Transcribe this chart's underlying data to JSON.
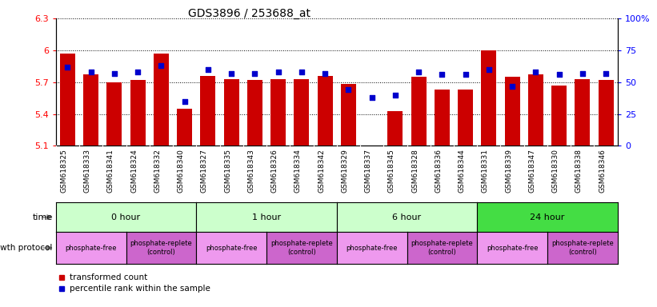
{
  "title": "GDS3896 / 253688_at",
  "samples": [
    "GSM618325",
    "GSM618333",
    "GSM618341",
    "GSM618324",
    "GSM618332",
    "GSM618340",
    "GSM618327",
    "GSM618335",
    "GSM618343",
    "GSM618326",
    "GSM618334",
    "GSM618342",
    "GSM618329",
    "GSM618337",
    "GSM618345",
    "GSM618328",
    "GSM618336",
    "GSM618344",
    "GSM618331",
    "GSM618339",
    "GSM618347",
    "GSM618330",
    "GSM618338",
    "GSM618346"
  ],
  "transformed_count": [
    5.97,
    5.77,
    5.7,
    5.72,
    5.97,
    5.45,
    5.76,
    5.73,
    5.72,
    5.73,
    5.73,
    5.76,
    5.68,
    5.1,
    5.43,
    5.75,
    5.63,
    5.63,
    6.0,
    5.75,
    5.77,
    5.67,
    5.73,
    5.72
  ],
  "percentile_rank": [
    62,
    58,
    57,
    58,
    63,
    35,
    60,
    57,
    57,
    58,
    58,
    57,
    44,
    38,
    40,
    58,
    56,
    56,
    60,
    47,
    58,
    56,
    57,
    57
  ],
  "ylim_left": [
    5.1,
    6.3
  ],
  "ylim_right": [
    0,
    100
  ],
  "yticks_left": [
    5.1,
    5.4,
    5.7,
    6.0,
    6.3
  ],
  "yticks_right": [
    0,
    25,
    50,
    75,
    100
  ],
  "ytick_labels_left": [
    "5.1",
    "5.4",
    "5.7",
    "6",
    "6.3"
  ],
  "ytick_labels_right": [
    "0",
    "25",
    "50",
    "75",
    "100%"
  ],
  "bar_color": "#cc0000",
  "percentile_color": "#0000cc",
  "time_groups": [
    {
      "label": "0 hour",
      "start": 0,
      "end": 6,
      "color": "#ccffcc"
    },
    {
      "label": "1 hour",
      "start": 6,
      "end": 12,
      "color": "#ccffcc"
    },
    {
      "label": "6 hour",
      "start": 12,
      "end": 18,
      "color": "#ccffcc"
    },
    {
      "label": "24 hour",
      "start": 18,
      "end": 24,
      "color": "#44dd44"
    }
  ],
  "protocol_groups": [
    {
      "label": "phosphate-free",
      "start": 0,
      "end": 3,
      "color": "#ee99ee"
    },
    {
      "label": "phosphate-replete\n(control)",
      "start": 3,
      "end": 6,
      "color": "#cc66cc"
    },
    {
      "label": "phosphate-free",
      "start": 6,
      "end": 9,
      "color": "#ee99ee"
    },
    {
      "label": "phosphate-replete\n(control)",
      "start": 9,
      "end": 12,
      "color": "#cc66cc"
    },
    {
      "label": "phosphate-free",
      "start": 12,
      "end": 15,
      "color": "#ee99ee"
    },
    {
      "label": "phosphate-replete\n(control)",
      "start": 15,
      "end": 18,
      "color": "#cc66cc"
    },
    {
      "label": "phosphate-free",
      "start": 18,
      "end": 21,
      "color": "#ee99ee"
    },
    {
      "label": "phosphate-replete\n(control)",
      "start": 21,
      "end": 24,
      "color": "#cc66cc"
    }
  ],
  "legend": [
    {
      "label": "transformed count",
      "color": "#cc0000"
    },
    {
      "label": "percentile rank within the sample",
      "color": "#0000cc"
    }
  ],
  "xtick_bg_color": "#dddddd",
  "n_samples": 24,
  "bar_width": 0.65
}
